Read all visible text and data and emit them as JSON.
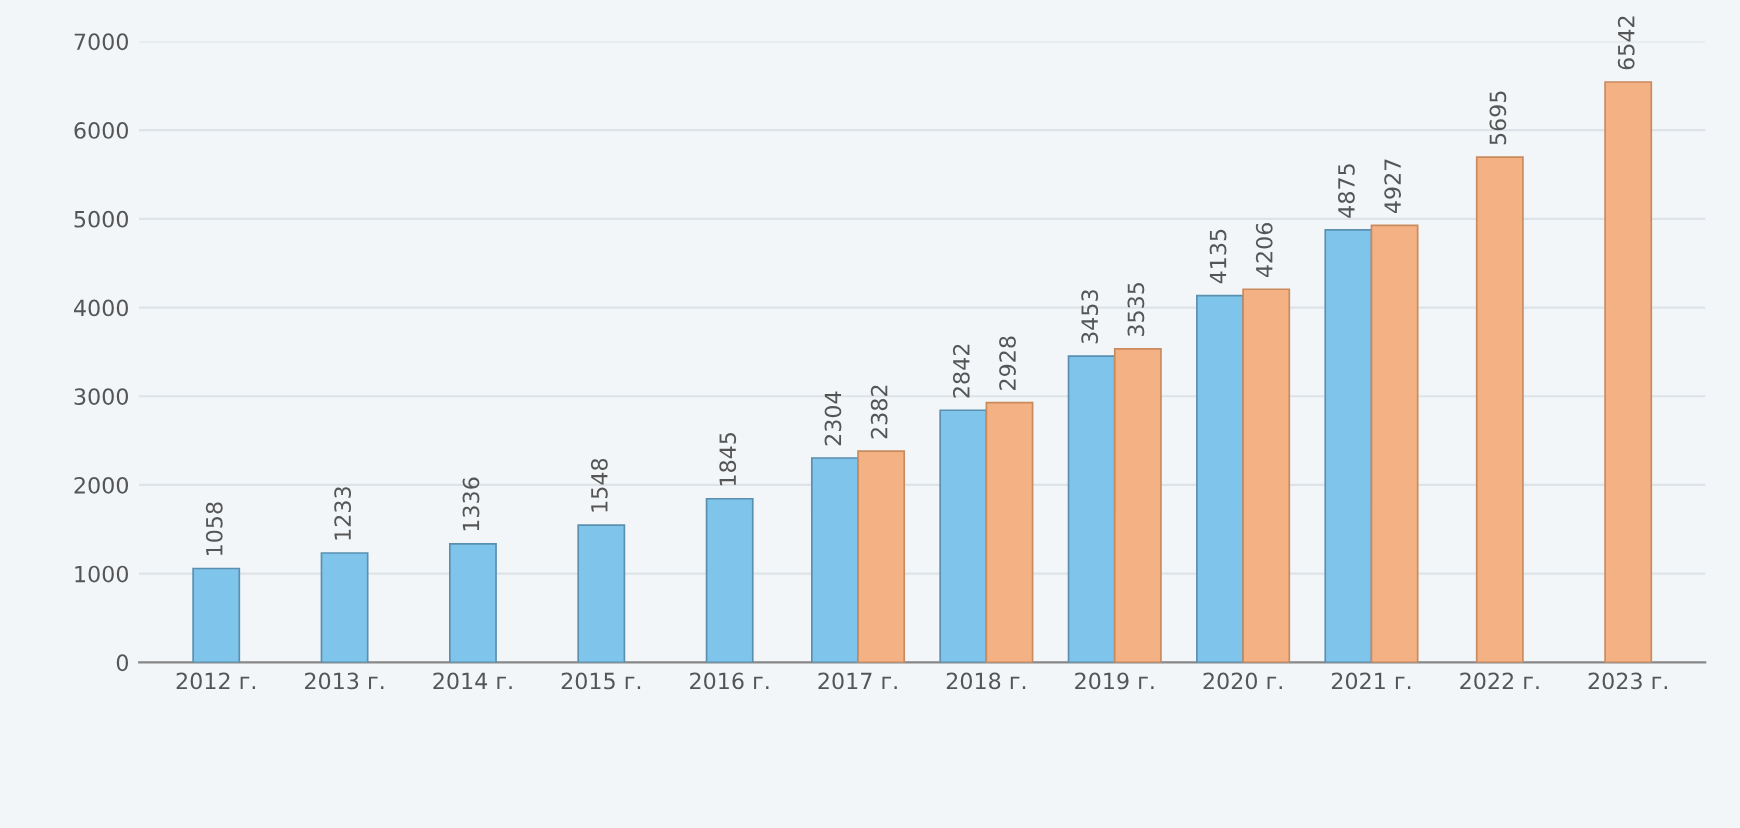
{
  "chart_data": {
    "type": "bar",
    "categories": [
      "2012 г.",
      "2013 г.",
      "2014 г.",
      "2015 г.",
      "2016 г.",
      "2017 г.",
      "2018 г.",
      "2019 г.",
      "2020 г.",
      "2021 г.",
      "2022 г.",
      "2023 г."
    ],
    "series": [
      {
        "color": "#7fc4ea",
        "values": [
          1058,
          1233,
          1336,
          1548,
          1845,
          2304,
          2842,
          3453,
          4135,
          4875,
          null,
          null
        ]
      },
      {
        "color": "#f4b183",
        "values": [
          null,
          null,
          null,
          null,
          null,
          2382,
          2928,
          3535,
          4206,
          4927,
          5695,
          6542
        ]
      }
    ],
    "ylim": [
      0,
      7000
    ],
    "yticks": [
      0,
      1000,
      2000,
      3000,
      4000,
      5000,
      6000,
      7000
    ],
    "grid": "y",
    "data_labels": true
  }
}
